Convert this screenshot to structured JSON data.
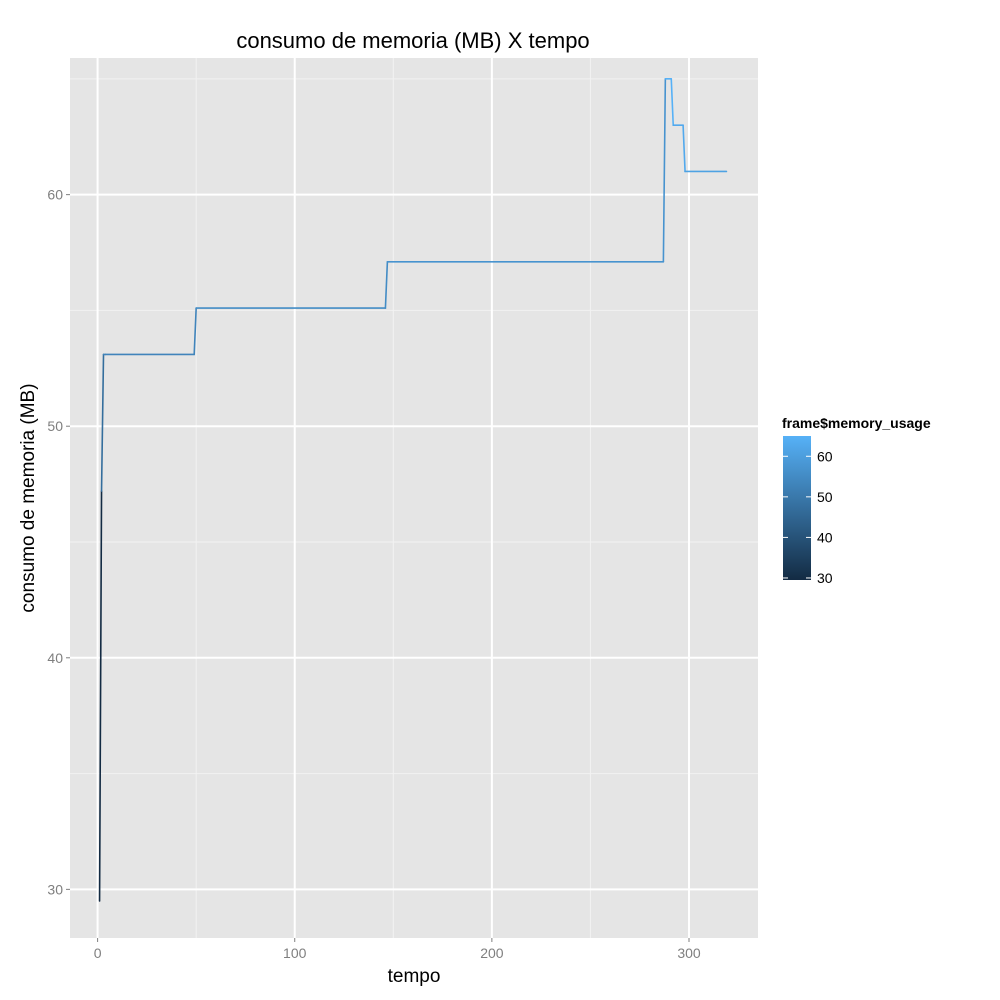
{
  "chart_data": {
    "type": "line",
    "title": "consumo de memoria (MB) X tempo",
    "xlabel": "tempo",
    "ylabel": "consumo de memoria (MB)",
    "xlim": [
      -14,
      335
    ],
    "ylim": [
      27.9,
      65.9
    ],
    "x_ticks": [
      0,
      100,
      200,
      300
    ],
    "y_ticks": [
      30,
      40,
      50,
      60
    ],
    "grid": true,
    "legend": {
      "title": "frame$memory_usage",
      "placement": "right",
      "ticks": [
        30,
        40,
        50,
        60
      ],
      "range": [
        29.5,
        65
      ],
      "color_low": "#132B43",
      "color_high": "#56B1F7"
    },
    "series": [
      {
        "x": [
          1,
          2,
          3,
          4,
          49,
          50,
          146,
          147,
          287,
          288,
          291,
          292,
          297,
          298,
          319
        ],
        "y": [
          29.5,
          47.2,
          53.1,
          53.1,
          53.1,
          55.1,
          55.1,
          57.1,
          57.1,
          65.0,
          65.0,
          63.0,
          63.0,
          61.0,
          61.0
        ]
      }
    ]
  }
}
